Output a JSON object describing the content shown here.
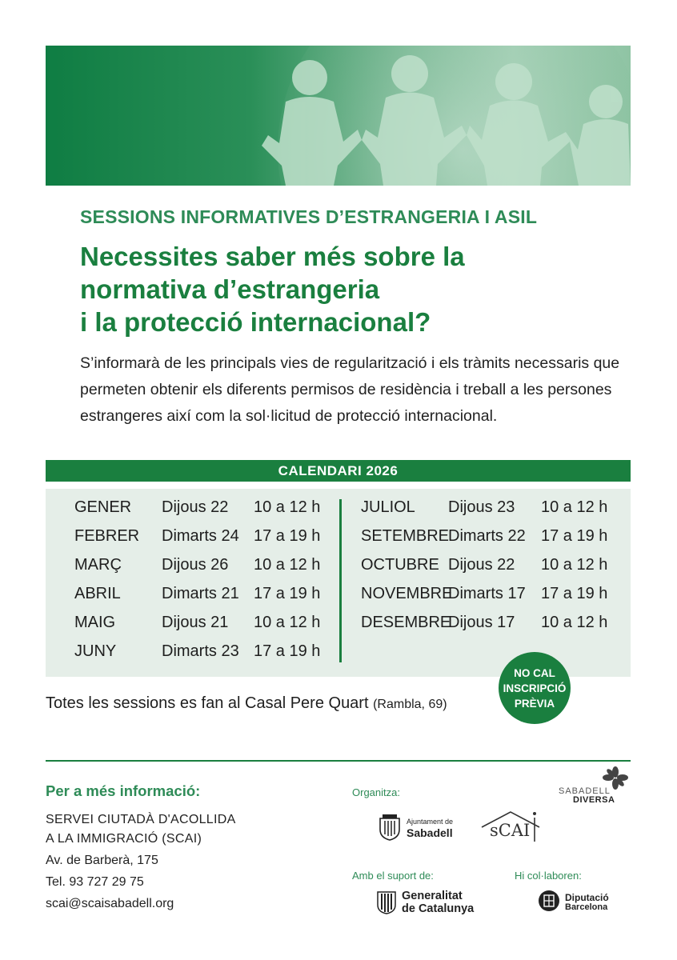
{
  "header": {
    "subtitle": "SESSIONS INFORMATIVES D’ESTRANGERIA I ASIL",
    "headline": [
      "Necessites saber més sobre la",
      "normativa d’estrangeria",
      "i la protecció internacional?"
    ],
    "intro": "S’informarà de les principals vies de regularització i els tràmits necessaris que permeten obtenir els diferents permisos de residència i treball a les persones estrangeres així com la sol·licitud de protecció internacional."
  },
  "calendar": {
    "title": "CALENDARI 2026",
    "left": [
      {
        "month": "GENER",
        "day": "Dijous 22",
        "time": "10 a 12 h"
      },
      {
        "month": "FEBRER",
        "day": "Dimarts 24",
        "time": "17 a 19 h"
      },
      {
        "month": "MARÇ",
        "day": "Dijous 26",
        "time": "10 a 12 h"
      },
      {
        "month": "ABRIL",
        "day": "Dimarts 21",
        "time": "17 a 19 h"
      },
      {
        "month": "MAIG",
        "day": "Dijous 21",
        "time": "10 a 12 h"
      },
      {
        "month": "JUNY",
        "day": "Dimarts 23",
        "time": "17 a 19 h"
      }
    ],
    "right": [
      {
        "month": "JULIOL",
        "day": "Dijous 23",
        "time": "10 a 12 h"
      },
      {
        "month": "SETEMBRE",
        "day": "Dimarts 22",
        "time": "17 a 19 h"
      },
      {
        "month": "OCTUBRE",
        "day": "Dijous 22",
        "time": "10 a 12 h"
      },
      {
        "month": "NOVEMBRE",
        "day": "Dimarts 17",
        "time": "17 a 19 h"
      },
      {
        "month": "DESEMBRE",
        "day": "Dijous 17",
        "time": "10 a 12 h"
      }
    ]
  },
  "venue": {
    "text": "Totes les sessions es fan al Casal Pere Quart",
    "address": "(Rambla, 69)"
  },
  "badge": [
    "NO CAL",
    "INSCRIPCIÓ",
    "PRÈVIA"
  ],
  "contact": {
    "title": "Per a més informació:",
    "org_line1": "SERVEI CIUTADÀ D'ACOLLIDA",
    "org_line2": "A LA IMMIGRACIÓ (SCAI)",
    "address": "Av. de Barberà, 175",
    "phone": "Tel. 93 727 29 75",
    "email": "scai@scaisabadell.org"
  },
  "credits": {
    "organitza": "Organitza:",
    "suport": "Amb el suport de:",
    "col": "Hi col·laboren:",
    "ajuntament_small": "Ajuntament de",
    "ajuntament_big": "Sabadell",
    "scai_logo": "sCAI",
    "sabadell_diversa_1": "SABADELL",
    "sabadell_diversa_2": "DIVERSA",
    "generalitat_1": "Generalitat",
    "generalitat_2": "de Catalunya",
    "diputacio_1": "Diputació",
    "diputacio_2": "Barcelona"
  },
  "colors": {
    "primary": "#1a7f3f",
    "accent": "#2e8b57",
    "calendar_bg": "#e5eee8"
  }
}
